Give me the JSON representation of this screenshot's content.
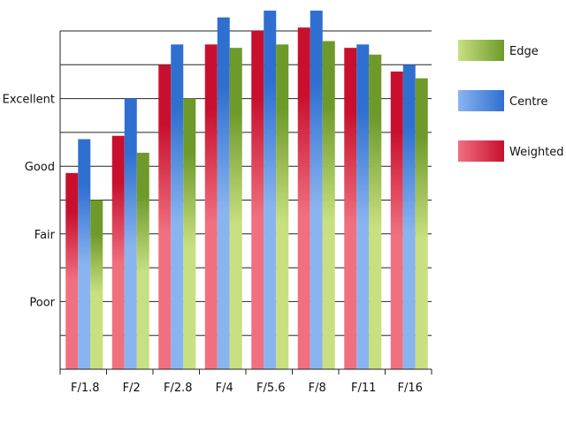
{
  "chart_data": {
    "type": "bar",
    "title": "",
    "xlabel": "",
    "ylabel": "",
    "categories": [
      "F/1.8",
      "F/2",
      "F/2.8",
      "F/4",
      "F/5.6",
      "F/8",
      "F/11",
      "F/16"
    ],
    "y_tick_labels": [
      {
        "value": 2,
        "label": "Poor"
      },
      {
        "value": 4,
        "label": "Fair"
      },
      {
        "value": 6,
        "label": "Good"
      },
      {
        "value": 8,
        "label": "Excellent"
      }
    ],
    "ylim": [
      0,
      10
    ],
    "grid": true,
    "legend_position": "right",
    "series": [
      {
        "name": "Weighted",
        "color": "#c8102e",
        "light": "#f07080",
        "values": [
          5.8,
          6.9,
          9.0,
          9.6,
          10.0,
          10.1,
          9.5,
          8.8
        ]
      },
      {
        "name": "Centre",
        "color": "#2f6fd0",
        "light": "#8ab4f0",
        "values": [
          6.8,
          8.0,
          9.6,
          10.4,
          10.6,
          10.6,
          9.6,
          9.0
        ]
      },
      {
        "name": "Edge",
        "color": "#6e9a2a",
        "light": "#c8e080",
        "values": [
          5.0,
          6.4,
          8.0,
          9.5,
          9.6,
          9.7,
          9.3,
          8.6
        ]
      }
    ],
    "legend_order": [
      "Edge",
      "Centre",
      "Weighted"
    ]
  }
}
